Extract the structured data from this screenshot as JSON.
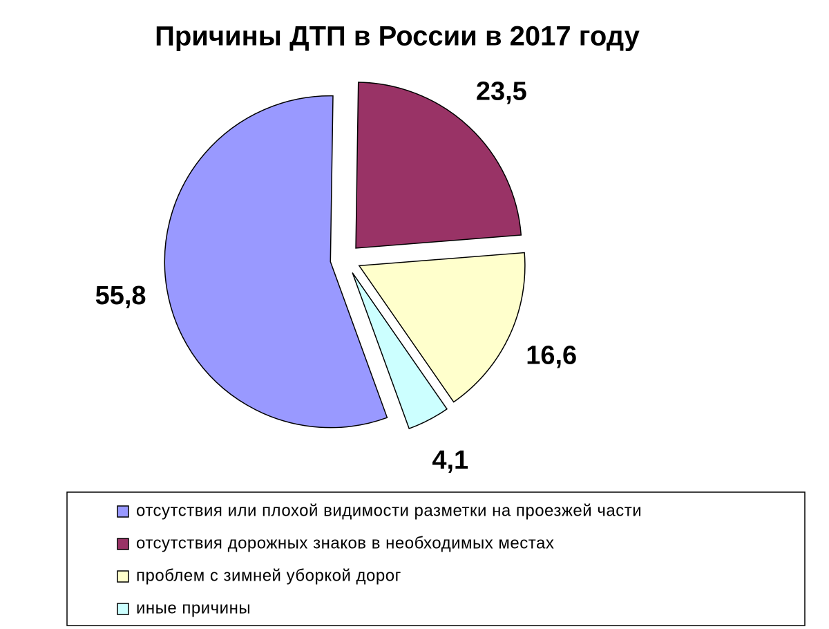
{
  "chart_data": {
    "type": "pie",
    "title": "Причины ДТП в России в 2017 году",
    "categories": [
      "отсутствия или плохой видимости разметки на проезжей части",
      "отсутствия дорожных знаков в необходимых местах",
      "проблем с зимней уборкой дорог",
      "иные причины"
    ],
    "values": [
      55.8,
      23.5,
      16.6,
      4.1
    ],
    "value_labels": [
      "55,8",
      "23,5",
      "16,6",
      "4,1"
    ],
    "colors": [
      "#9999ff",
      "#993366",
      "#ffffcc",
      "#ccffff"
    ],
    "legend": "bottom"
  }
}
